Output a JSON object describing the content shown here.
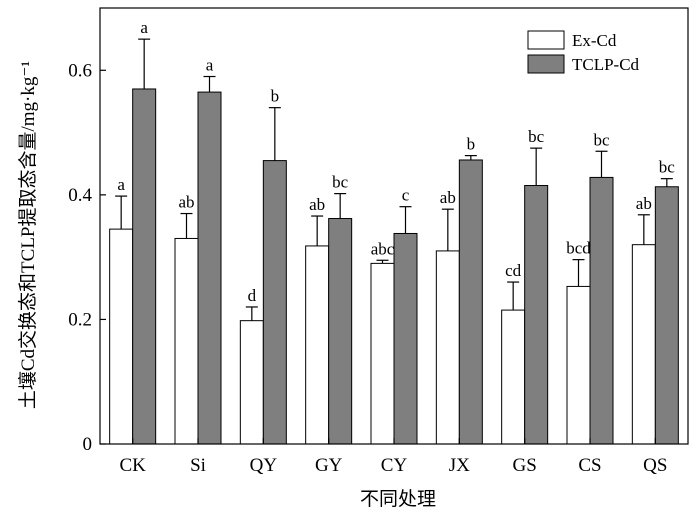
{
  "chart_data": {
    "type": "bar",
    "xlabel": "不同处理",
    "ylabel": "土壤Cd交换态和TCLP提取态含量/mg·kg⁻¹",
    "ylim": [
      0,
      0.7
    ],
    "yticks": [
      0,
      0.2,
      0.4,
      0.6
    ],
    "ytick_labels": [
      "0",
      "0.2",
      "0.4",
      "0.6"
    ],
    "grid": false,
    "legend_position": "top-right",
    "categories": [
      "CK",
      "Si",
      "QY",
      "GY",
      "CY",
      "JX",
      "GS",
      "CS",
      "QS"
    ],
    "series": [
      {
        "name": "Ex-Cd",
        "color": "#ffffff",
        "values": [
          0.345,
          0.33,
          0.198,
          0.318,
          0.29,
          0.31,
          0.215,
          0.253,
          0.32
        ],
        "errors": [
          0.053,
          0.04,
          0.022,
          0.048,
          0.005,
          0.067,
          0.045,
          0.043,
          0.048
        ],
        "labels": [
          "a",
          "ab",
          "d",
          "ab",
          "abc",
          "ab",
          "cd",
          "bcd",
          "ab"
        ]
      },
      {
        "name": "TCLP-Cd",
        "color": "#7f7f7f",
        "values": [
          0.57,
          0.565,
          0.455,
          0.362,
          0.338,
          0.456,
          0.415,
          0.428,
          0.413
        ],
        "errors": [
          0.08,
          0.025,
          0.085,
          0.04,
          0.043,
          0.007,
          0.06,
          0.042,
          0.013
        ],
        "labels": [
          "a",
          "a",
          "b",
          "bc",
          "c",
          "b",
          "bc",
          "bc",
          "bc"
        ]
      }
    ]
  }
}
